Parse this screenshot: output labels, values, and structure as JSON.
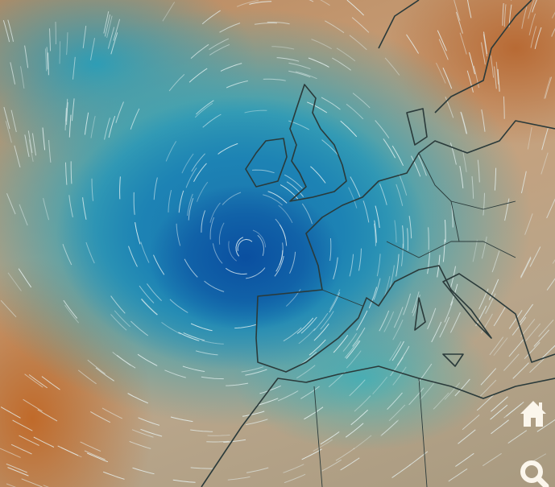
{
  "map": {
    "type": "wind streamline map",
    "colors": {
      "cyclone_core": "#0a4fa0",
      "ocean_wind": "#2694b6",
      "calm": "#c9a07a",
      "strong_land": "#c06a2a",
      "coastline": "#2a3a3a",
      "streamline": "#e8f4f4"
    }
  },
  "controls": {
    "home_icon": "home-icon",
    "search_icon": "search-icon",
    "icon_color": "#fbf6ec"
  }
}
